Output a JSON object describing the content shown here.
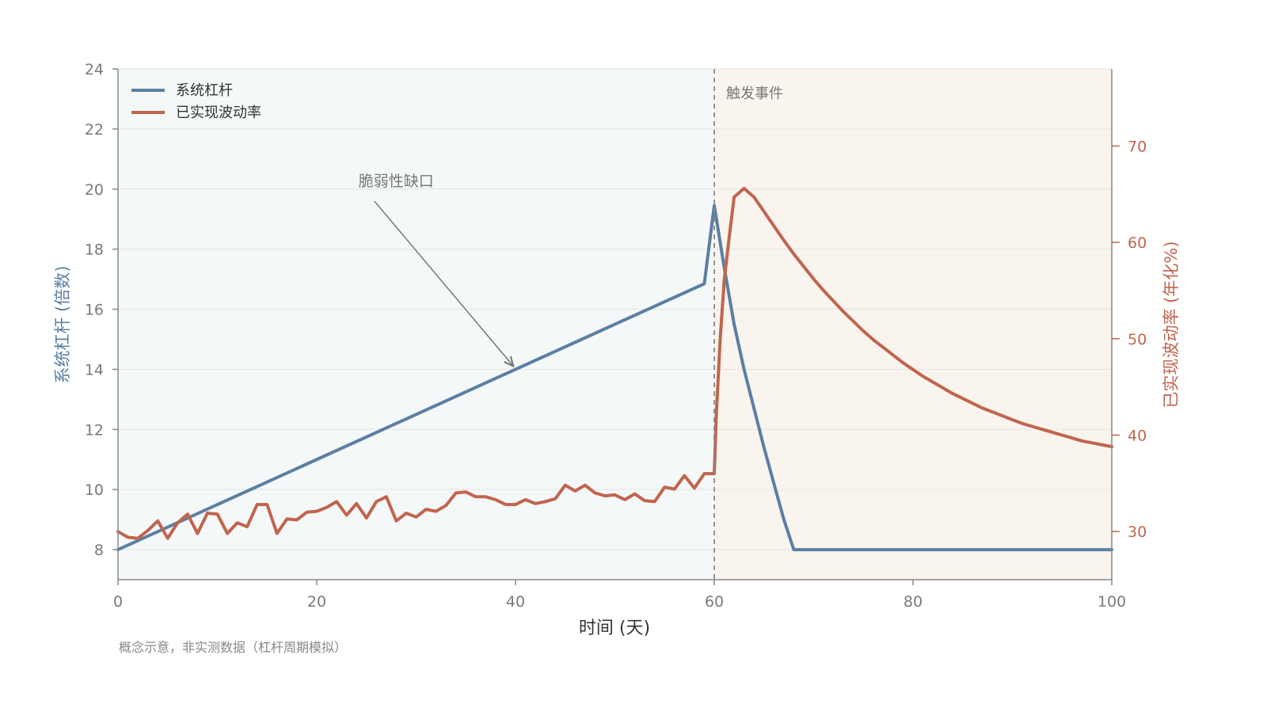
{
  "chart_data": {
    "type": "line",
    "xlabel": "时间 (天)",
    "ylabel_left": "系统杠杆 (倍数)",
    "ylabel_right": "已实现波动率 (年化%)",
    "xlim": [
      0,
      100
    ],
    "ylim_left": [
      7,
      24
    ],
    "ylim_right": [
      25,
      78
    ],
    "x_ticks": [
      0,
      20,
      40,
      60,
      80,
      100
    ],
    "y_ticks_left": [
      8,
      10,
      12,
      14,
      16,
      18,
      20,
      22,
      24
    ],
    "y_ticks_right": [
      30,
      40,
      50,
      60,
      70
    ],
    "grid": true,
    "legend_position": "top-left",
    "event": {
      "x": 60,
      "label": "触发事件"
    },
    "annotation": {
      "text": "脆弱性缺口",
      "text_x": 24.2,
      "text_y": 20.1,
      "arrow_from": [
        25.8,
        19.6
      ],
      "arrow_to": [
        39.8,
        14.1
      ]
    },
    "footnote": "概念示意，非实测数据（杠杆周期模拟）",
    "colors": {
      "leverage": "#5b7fa3",
      "volatility": "#c0654e",
      "pre_bg": "#f5f8f8",
      "post_bg": "#faf4ee"
    },
    "series": [
      {
        "name": "系统杠杆",
        "axis": "left",
        "points": [
          [
            0,
            8.0
          ],
          [
            59,
            16.85
          ],
          [
            60,
            19.45
          ],
          [
            61,
            17.4
          ],
          [
            62,
            15.5
          ],
          [
            63,
            14.0
          ],
          [
            64,
            12.7
          ],
          [
            65,
            11.4
          ],
          [
            66,
            10.2
          ],
          [
            67,
            9.0
          ],
          [
            68,
            8.0
          ],
          [
            100,
            8.0
          ]
        ]
      },
      {
        "name": "已实现波动率",
        "axis": "right",
        "points": [
          [
            0,
            30.0
          ],
          [
            1,
            29.4
          ],
          [
            2,
            29.3
          ],
          [
            3,
            30.1
          ],
          [
            4,
            31.1
          ],
          [
            5,
            29.3
          ],
          [
            6,
            30.9
          ],
          [
            7,
            31.8
          ],
          [
            8,
            29.8
          ],
          [
            9,
            31.9
          ],
          [
            10,
            31.8
          ],
          [
            11,
            29.8
          ],
          [
            12,
            30.9
          ],
          [
            13,
            30.5
          ],
          [
            14,
            32.8
          ],
          [
            15,
            32.8
          ],
          [
            16,
            29.8
          ],
          [
            17,
            31.3
          ],
          [
            18,
            31.2
          ],
          [
            19,
            32.0
          ],
          [
            20,
            32.1
          ],
          [
            21,
            32.5
          ],
          [
            22,
            33.1
          ],
          [
            23,
            31.7
          ],
          [
            24,
            32.9
          ],
          [
            25,
            31.4
          ],
          [
            26,
            33.1
          ],
          [
            27,
            33.6
          ],
          [
            28,
            31.1
          ],
          [
            29,
            31.9
          ],
          [
            30,
            31.5
          ],
          [
            31,
            32.3
          ],
          [
            32,
            32.1
          ],
          [
            33,
            32.7
          ],
          [
            34,
            34.0
          ],
          [
            35,
            34.1
          ],
          [
            36,
            33.6
          ],
          [
            37,
            33.6
          ],
          [
            38,
            33.3
          ],
          [
            39,
            32.8
          ],
          [
            40,
            32.8
          ],
          [
            41,
            33.3
          ],
          [
            42,
            32.9
          ],
          [
            43,
            33.1
          ],
          [
            44,
            33.4
          ],
          [
            45,
            34.8
          ],
          [
            46,
            34.2
          ],
          [
            47,
            34.8
          ],
          [
            48,
            34.0
          ],
          [
            49,
            33.7
          ],
          [
            50,
            33.8
          ],
          [
            51,
            33.3
          ],
          [
            52,
            33.9
          ],
          [
            53,
            33.2
          ],
          [
            54,
            33.1
          ],
          [
            55,
            34.6
          ],
          [
            56,
            34.4
          ],
          [
            57,
            35.8
          ],
          [
            58,
            34.5
          ],
          [
            59,
            36.0
          ],
          [
            60,
            36.0
          ],
          [
            60.2,
            42.0
          ],
          [
            60.6,
            50.0
          ],
          [
            61,
            56.0
          ],
          [
            61.5,
            60.5
          ],
          [
            62,
            64.7
          ],
          [
            63,
            65.6
          ],
          [
            64,
            64.7
          ],
          [
            65,
            63.2
          ],
          [
            66,
            61.7
          ],
          [
            67,
            60.2
          ],
          [
            68,
            58.8
          ],
          [
            69,
            57.5
          ],
          [
            70,
            56.2
          ],
          [
            71,
            55.0
          ],
          [
            72,
            53.9
          ],
          [
            73,
            52.8
          ],
          [
            74,
            51.8
          ],
          [
            75,
            50.8
          ],
          [
            76,
            49.9
          ],
          [
            77,
            49.1
          ],
          [
            78,
            48.3
          ],
          [
            79,
            47.5
          ],
          [
            80,
            46.8
          ],
          [
            81,
            46.1
          ],
          [
            82,
            45.5
          ],
          [
            83,
            44.9
          ],
          [
            84,
            44.3
          ],
          [
            85,
            43.8
          ],
          [
            86,
            43.3
          ],
          [
            87,
            42.8
          ],
          [
            88,
            42.4
          ],
          [
            89,
            42.0
          ],
          [
            90,
            41.6
          ],
          [
            91,
            41.2
          ],
          [
            92,
            40.9
          ],
          [
            93,
            40.6
          ],
          [
            94,
            40.3
          ],
          [
            95,
            40.0
          ],
          [
            96,
            39.7
          ],
          [
            97,
            39.4
          ],
          [
            98,
            39.2
          ],
          [
            99,
            39.0
          ],
          [
            100,
            38.8
          ]
        ]
      }
    ]
  }
}
